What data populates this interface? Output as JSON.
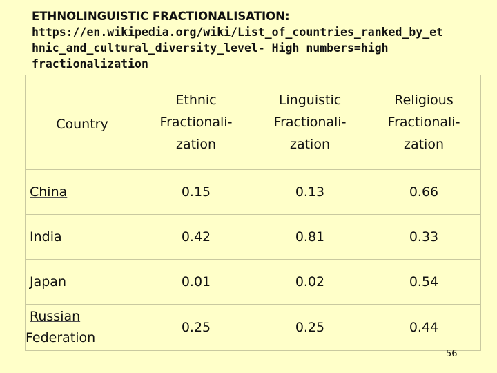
{
  "header": {
    "title": "ETHNOLINGUISTIC FRACTIONALISATION",
    "colon": ":",
    "url_line1": "https://en.wikipedia.org/wiki/List_of_countries_ranked_by_et",
    "url_line2": "hnic_and_cultural_diversity_level- High numbers=high",
    "url_line3": "fractionalization"
  },
  "table": {
    "columns": {
      "country": "Country",
      "ethnic_1": "Ethnic",
      "ethnic_2": "Fractionali-",
      "ethnic_3": "zation",
      "linguistic_1": "Linguistic",
      "linguistic_2": "Fractionali-",
      "linguistic_3": "zation",
      "religious_1": "Religious",
      "religious_2": "Fractionali-",
      "religious_3": "zation"
    },
    "rows": [
      {
        "country": "China",
        "ethnic": "0.15",
        "linguistic": "0.13",
        "religious": "0.66"
      },
      {
        "country": "India",
        "ethnic": "0.42",
        "linguistic": "0.81",
        "religious": "0.33"
      },
      {
        "country": "Japan",
        "ethnic": "0.01",
        "linguistic": "0.02",
        "religious": "0.54"
      },
      {
        "country_line1": "Russian",
        "country_line2": "Federation",
        "ethnic": "0.25",
        "linguistic": "0.25",
        "religious": "0.44"
      }
    ]
  },
  "page_number": "56",
  "colors": {
    "background": "#FFFFC9",
    "border": "#C9C9A0"
  }
}
